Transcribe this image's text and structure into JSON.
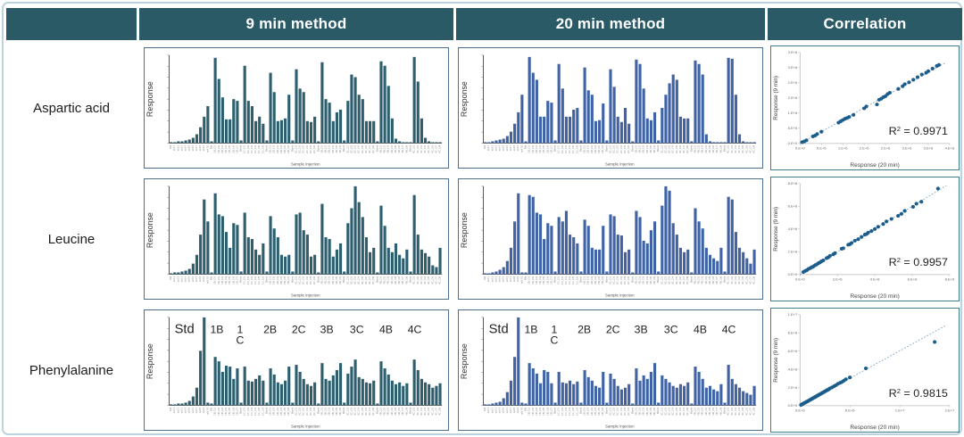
{
  "header": {
    "col_method9": "9 min method",
    "col_method20": "20 min method",
    "col_correlation": "Correlation"
  },
  "colors": {
    "header_bg": "#2a5a66",
    "bar_teal": "#2e5f6e",
    "bar_blue": "#3f63a5",
    "scatter_dot": "#1b5d8d",
    "trend_line": "#7fa8c4"
  },
  "rows": [
    {
      "label": "Aspartic acid"
    },
    {
      "label": "Leucine"
    },
    {
      "label": "Phenylalanine"
    }
  ],
  "chart_data": {
    "bar_xlabel": "Sample Injection",
    "bar_ylabel": "Response",
    "bar_ticks": [
      "Std",
      "std 1",
      "std 2",
      "std 3",
      "std 4",
      "std 5",
      "std 6",
      "std 7",
      "std 8",
      "std 9",
      "std 10",
      "Blk",
      "1B_D1",
      "1B_D2",
      "1B_D3",
      "1B_D4",
      "1B_D5",
      "1B_D6",
      "1B_D7",
      "Blank",
      "1C_D1",
      "1C_D2",
      "1C_D3",
      "1C_D4",
      "1C_D5",
      "1C_D6",
      "Blank",
      "2B_D1",
      "2B_D2",
      "2B_D3",
      "2B_D4",
      "2B_D5",
      "2B_D6",
      "Blank",
      "2C_D1",
      "2C_D2",
      "2C_D3",
      "2C_D4",
      "2C_D5",
      "2C_D6",
      "Blank",
      "3B_D1",
      "3B_D2",
      "3B_D3",
      "3B_D4",
      "3B_D5",
      "3B_D6",
      "Blank",
      "3C_D1",
      "3C_D2",
      "3C_D3",
      "3C_D4",
      "3C_D5",
      "3C_D6",
      "3C_D7",
      "3C_D8",
      "Blank",
      "4B_D1",
      "4B_D2",
      "4B_D3",
      "4B_D4",
      "4B_D5",
      "4B_D6",
      "4B_D7",
      "4B_D8",
      "Blank",
      "4C_D1",
      "4C_D2",
      "4C_D3",
      "4C_D4",
      "4C_D5",
      "4C_D6",
      "4C_D7",
      "4C_D8"
    ],
    "charts": [
      {
        "type": "bar",
        "color": "#2e5f6e",
        "values": [
          0.01,
          0.01,
          0.02,
          0.02,
          0.03,
          0.04,
          0.06,
          0.1,
          0.18,
          0.3,
          0.42,
          0.02,
          0.97,
          0.73,
          0.52,
          0.27,
          0.27,
          0.5,
          0.48,
          0.03,
          0.88,
          0.48,
          0.42,
          0.25,
          0.3,
          0.22,
          0.03,
          0.8,
          0.58,
          0.25,
          0.26,
          0.28,
          0.55,
          0.03,
          0.84,
          0.62,
          0.58,
          0.25,
          0.24,
          0.3,
          0.02,
          0.92,
          0.5,
          0.46,
          0.25,
          0.35,
          0.38,
          0.03,
          0.48,
          0.78,
          0.75,
          0.55,
          0.5,
          0.25,
          0.25,
          0.25,
          0.02,
          0.93,
          0.88,
          0.65,
          0.28,
          0.05,
          0.02,
          0.01,
          0.01,
          0.01,
          0.98,
          0.7,
          0.28,
          0.06,
          0.02,
          0.01,
          0.01,
          0.01
        ]
      },
      {
        "type": "bar",
        "color": "#3f63a5",
        "values": [
          0.01,
          0.01,
          0.02,
          0.03,
          0.04,
          0.05,
          0.08,
          0.13,
          0.22,
          0.35,
          0.55,
          0.02,
          0.98,
          0.8,
          0.72,
          0.3,
          0.3,
          0.48,
          0.46,
          0.03,
          0.9,
          0.62,
          0.3,
          0.3,
          0.38,
          0.4,
          0.03,
          0.86,
          0.6,
          0.55,
          0.25,
          0.26,
          0.45,
          0.03,
          0.84,
          0.64,
          0.3,
          0.24,
          0.4,
          0.22,
          0.02,
          0.95,
          0.9,
          0.62,
          0.28,
          0.26,
          0.35,
          0.03,
          0.4,
          0.55,
          0.68,
          0.78,
          0.72,
          0.3,
          0.28,
          0.28,
          0.02,
          0.94,
          0.9,
          0.78,
          0.1,
          0.02,
          0.01,
          0.01,
          0.01,
          0.01,
          0.97,
          0.96,
          0.55,
          0.1,
          0.02,
          0.01,
          0.01,
          0.01
        ]
      },
      {
        "type": "scatter",
        "r2": "0.9971",
        "xlabel": "Response (20 min)",
        "ylabel": "Response (9 min)",
        "xmax": 3.5,
        "ymax": 3.5,
        "xticks": [
          "0.E+0",
          "5.E+5",
          "1.E+6",
          "2.E+6",
          "2.E+6",
          "3.E+6",
          "3.E+6",
          "4.E+6"
        ],
        "yticks": [
          "0.E+0",
          "5.E+5",
          "1.E+6",
          "2.E+6",
          "2.E+6",
          "3.E+6",
          "3.E+6"
        ],
        "trend": [
          [
            0,
            0
          ],
          [
            3.4,
            3.1
          ]
        ],
        "points": [
          [
            0.05,
            0.05
          ],
          [
            0.1,
            0.08
          ],
          [
            0.15,
            0.12
          ],
          [
            0.3,
            0.27
          ],
          [
            0.35,
            0.3
          ],
          [
            0.4,
            0.36
          ],
          [
            0.5,
            0.45
          ],
          [
            0.9,
            0.8
          ],
          [
            0.95,
            0.85
          ],
          [
            1.0,
            0.9
          ],
          [
            1.05,
            0.95
          ],
          [
            1.1,
            0.98
          ],
          [
            1.15,
            1.02
          ],
          [
            1.25,
            1.1
          ],
          [
            1.5,
            1.35
          ],
          [
            1.55,
            1.42
          ],
          [
            1.8,
            1.5
          ],
          [
            1.85,
            1.68
          ],
          [
            1.9,
            1.72
          ],
          [
            1.95,
            1.78
          ],
          [
            2.0,
            1.82
          ],
          [
            2.05,
            1.9
          ],
          [
            2.1,
            1.95
          ],
          [
            2.3,
            2.1
          ],
          [
            2.4,
            2.2
          ],
          [
            2.45,
            2.28
          ],
          [
            2.55,
            2.35
          ],
          [
            2.65,
            2.45
          ],
          [
            2.75,
            2.55
          ],
          [
            2.85,
            2.65
          ],
          [
            2.95,
            2.72
          ],
          [
            3.0,
            2.78
          ],
          [
            3.1,
            2.88
          ],
          [
            3.2,
            2.98
          ],
          [
            3.25,
            3.02
          ]
        ]
      },
      {
        "type": "bar",
        "color": "#2e5f6e",
        "values": [
          0.01,
          0.02,
          0.02,
          0.03,
          0.04,
          0.06,
          0.12,
          0.22,
          0.45,
          0.85,
          0.6,
          0.02,
          0.92,
          0.68,
          0.66,
          0.48,
          0.3,
          0.58,
          0.56,
          0.03,
          0.7,
          0.42,
          0.4,
          0.28,
          0.22,
          0.35,
          0.03,
          0.66,
          0.52,
          0.42,
          0.22,
          0.2,
          0.22,
          0.03,
          0.68,
          0.7,
          0.5,
          0.45,
          0.2,
          0.22,
          0.02,
          0.8,
          0.42,
          0.4,
          0.2,
          0.28,
          0.35,
          0.03,
          0.58,
          0.75,
          1.0,
          0.82,
          0.65,
          0.42,
          0.25,
          0.3,
          0.02,
          0.78,
          0.55,
          0.3,
          0.25,
          0.35,
          0.22,
          0.18,
          0.28,
          0.03,
          0.9,
          0.45,
          0.28,
          0.24,
          0.2,
          0.1,
          0.08,
          0.3
        ]
      },
      {
        "type": "bar",
        "color": "#3f63a5",
        "values": [
          0.01,
          0.01,
          0.02,
          0.03,
          0.05,
          0.08,
          0.15,
          0.3,
          0.6,
          0.92,
          0.02,
          0.02,
          0.9,
          0.88,
          0.7,
          0.68,
          0.4,
          0.58,
          0.55,
          0.03,
          0.65,
          0.6,
          0.72,
          0.45,
          0.42,
          0.35,
          0.03,
          0.62,
          0.55,
          0.3,
          0.28,
          0.28,
          0.55,
          0.03,
          0.68,
          0.66,
          0.45,
          0.44,
          0.25,
          0.28,
          0.02,
          0.72,
          0.65,
          0.38,
          0.35,
          0.5,
          0.6,
          0.03,
          0.78,
          1.0,
          0.95,
          0.58,
          0.45,
          0.3,
          0.25,
          0.28,
          0.02,
          0.75,
          0.6,
          0.52,
          0.3,
          0.22,
          0.18,
          0.15,
          0.3,
          0.03,
          0.88,
          0.85,
          0.48,
          0.3,
          0.25,
          0.18,
          0.12,
          0.28
        ]
      },
      {
        "type": "scatter",
        "r2": "0.9957",
        "xlabel": "Response (20 min)",
        "ylabel": "Response (9 min)",
        "xmax": 9,
        "ymax": 9,
        "xticks": [
          "0.E+0",
          "2.E+6",
          "4.E+6",
          "6.E+6",
          "8.E+6"
        ],
        "yticks": [
          "0.E+0",
          "2.E+6",
          "4.E+6",
          "6.E+6",
          "8.E+6"
        ],
        "trend": [
          [
            0,
            0
          ],
          [
            8.8,
            8.8
          ]
        ],
        "points": [
          [
            0.2,
            0.25
          ],
          [
            0.3,
            0.35
          ],
          [
            0.4,
            0.42
          ],
          [
            0.5,
            0.55
          ],
          [
            0.6,
            0.62
          ],
          [
            0.7,
            0.72
          ],
          [
            0.8,
            0.8
          ],
          [
            0.9,
            0.92
          ],
          [
            1.0,
            1.0
          ],
          [
            1.1,
            1.12
          ],
          [
            1.2,
            1.2
          ],
          [
            1.3,
            1.32
          ],
          [
            1.4,
            1.4
          ],
          [
            1.6,
            1.62
          ],
          [
            1.7,
            1.7
          ],
          [
            1.8,
            1.85
          ],
          [
            2.0,
            2.0
          ],
          [
            2.1,
            2.12
          ],
          [
            2.5,
            2.55
          ],
          [
            2.6,
            2.6
          ],
          [
            2.9,
            2.95
          ],
          [
            3.0,
            3.0
          ],
          [
            3.1,
            3.12
          ],
          [
            3.3,
            3.35
          ],
          [
            3.5,
            3.5
          ],
          [
            3.7,
            3.72
          ],
          [
            3.9,
            3.95
          ],
          [
            4.0,
            4.0
          ],
          [
            4.1,
            4.15
          ],
          [
            4.3,
            4.3
          ],
          [
            4.5,
            4.5
          ],
          [
            4.7,
            4.72
          ],
          [
            5.0,
            5.0
          ],
          [
            5.2,
            5.25
          ],
          [
            5.5,
            5.5
          ],
          [
            5.9,
            5.8
          ],
          [
            6.1,
            6.0
          ],
          [
            6.3,
            6.3
          ],
          [
            6.8,
            6.7
          ],
          [
            7.0,
            7.0
          ],
          [
            7.3,
            7.2
          ],
          [
            8.3,
            8.5
          ]
        ]
      },
      {
        "type": "bar",
        "color": "#2e5f6e",
        "annotations": [
          {
            "t": "Std",
            "x": 0.02,
            "big": true
          },
          {
            "t": "1B",
            "x": 0.175
          },
          {
            "t": "1\nC",
            "x": 0.26
          },
          {
            "t": "2B",
            "x": 0.37
          },
          {
            "t": "2C",
            "x": 0.475
          },
          {
            "t": "3B",
            "x": 0.578
          },
          {
            "t": "3C",
            "x": 0.688
          },
          {
            "t": "4B",
            "x": 0.795
          },
          {
            "t": "4C",
            "x": 0.9
          }
        ],
        "values": [
          0.01,
          0.01,
          0.02,
          0.02,
          0.03,
          0.05,
          0.1,
          0.2,
          0.62,
          1.0,
          0.03,
          0.02,
          0.55,
          0.5,
          0.38,
          0.45,
          0.44,
          0.3,
          0.42,
          0.03,
          0.44,
          0.28,
          0.27,
          0.3,
          0.34,
          0.28,
          0.03,
          0.42,
          0.35,
          0.26,
          0.24,
          0.28,
          0.44,
          0.03,
          0.46,
          0.38,
          0.3,
          0.24,
          0.22,
          0.26,
          0.02,
          0.48,
          0.3,
          0.28,
          0.34,
          0.4,
          0.48,
          0.03,
          0.36,
          0.44,
          0.52,
          0.32,
          0.3,
          0.26,
          0.25,
          0.28,
          0.02,
          0.5,
          0.42,
          0.35,
          0.28,
          0.24,
          0.26,
          0.22,
          0.25,
          0.03,
          0.52,
          0.4,
          0.3,
          0.26,
          0.24,
          0.2,
          0.22,
          0.25
        ]
      },
      {
        "type": "bar",
        "color": "#3f63a5",
        "annotations": [
          {
            "t": "Std",
            "x": 0.02,
            "big": true
          },
          {
            "t": "1B",
            "x": 0.175
          },
          {
            "t": "1\nC",
            "x": 0.26
          },
          {
            "t": "2B",
            "x": 0.37
          },
          {
            "t": "2C",
            "x": 0.475
          },
          {
            "t": "3B",
            "x": 0.578
          },
          {
            "t": "3C",
            "x": 0.688
          },
          {
            "t": "4B",
            "x": 0.795
          },
          {
            "t": "4C",
            "x": 0.9
          }
        ],
        "values": [
          0.01,
          0.01,
          0.02,
          0.03,
          0.04,
          0.08,
          0.15,
          0.28,
          0.55,
          1.0,
          0.03,
          0.02,
          0.48,
          0.42,
          0.36,
          0.25,
          0.4,
          0.38,
          0.25,
          0.03,
          0.38,
          0.26,
          0.25,
          0.28,
          0.24,
          0.27,
          0.03,
          0.4,
          0.32,
          0.28,
          0.22,
          0.2,
          0.38,
          0.03,
          0.36,
          0.3,
          0.22,
          0.18,
          0.2,
          0.24,
          0.02,
          0.42,
          0.28,
          0.34,
          0.3,
          0.38,
          0.48,
          0.03,
          0.34,
          0.3,
          0.26,
          0.22,
          0.2,
          0.24,
          0.22,
          0.26,
          0.02,
          0.44,
          0.38,
          0.3,
          0.2,
          0.22,
          0.18,
          0.16,
          0.24,
          0.03,
          0.46,
          0.3,
          0.24,
          0.2,
          0.16,
          0.14,
          0.12,
          0.22
        ]
      },
      {
        "type": "scatter",
        "r2": "0.9815",
        "xlabel": "Response (20 min)",
        "ylabel": "Response (9 min)",
        "xmax": 15,
        "ymax": 10,
        "xticks": [
          "0.E+0",
          "5.E+6",
          "1.E+7",
          "2.E+7"
        ],
        "yticks": [
          "0.E+0",
          "2.E+6",
          "4.E+6",
          "6.E+6",
          "8.E+6",
          "1.E+7"
        ],
        "trend": [
          [
            0,
            0
          ],
          [
            14.6,
            8.8
          ]
        ],
        "points": [
          [
            0.1,
            0.08
          ],
          [
            0.2,
            0.15
          ],
          [
            0.3,
            0.2
          ],
          [
            0.4,
            0.28
          ],
          [
            0.5,
            0.32
          ],
          [
            0.6,
            0.4
          ],
          [
            0.7,
            0.45
          ],
          [
            0.8,
            0.5
          ],
          [
            0.9,
            0.58
          ],
          [
            1.0,
            0.62
          ],
          [
            1.1,
            0.7
          ],
          [
            1.2,
            0.75
          ],
          [
            1.3,
            0.82
          ],
          [
            1.4,
            0.88
          ],
          [
            1.5,
            0.95
          ],
          [
            1.6,
            1.0
          ],
          [
            1.7,
            1.08
          ],
          [
            1.8,
            1.12
          ],
          [
            1.9,
            1.2
          ],
          [
            2.0,
            1.25
          ],
          [
            2.1,
            1.32
          ],
          [
            2.2,
            1.38
          ],
          [
            2.3,
            1.45
          ],
          [
            2.4,
            1.5
          ],
          [
            2.5,
            1.58
          ],
          [
            2.6,
            1.62
          ],
          [
            2.7,
            1.7
          ],
          [
            2.8,
            1.75
          ],
          [
            2.9,
            1.82
          ],
          [
            3.0,
            1.9
          ],
          [
            3.2,
            2.0
          ],
          [
            3.4,
            2.12
          ],
          [
            3.6,
            2.25
          ],
          [
            3.8,
            2.4
          ],
          [
            4.0,
            2.5
          ],
          [
            4.2,
            2.6
          ],
          [
            4.4,
            2.75
          ],
          [
            4.6,
            2.9
          ],
          [
            5.0,
            3.1
          ],
          [
            6.6,
            4.1
          ],
          [
            13.5,
            7.0
          ]
        ]
      }
    ]
  }
}
